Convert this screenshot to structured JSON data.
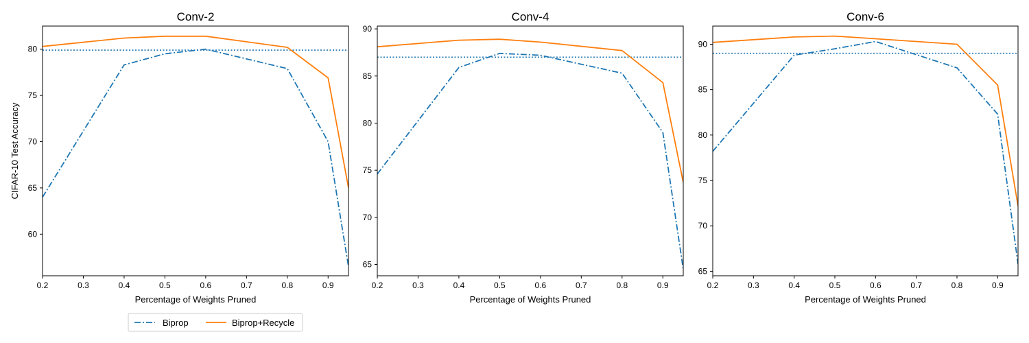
{
  "chart_data": [
    {
      "type": "line",
      "title": "Conv-2",
      "xlabel": "Percentage of Weights Pruned",
      "ylabel": "CIFAR-10 Test Accuracy",
      "xlim": [
        0.2,
        0.95
      ],
      "ylim": [
        55.5,
        82.5
      ],
      "xticks": [
        0.2,
        0.3,
        0.4,
        0.5,
        0.6,
        0.7,
        0.8,
        0.9
      ],
      "yticks": [
        60,
        65,
        70,
        75,
        80
      ],
      "baseline": 79.9,
      "x": [
        0.2,
        0.4,
        0.5,
        0.6,
        0.8,
        0.9,
        0.95
      ],
      "series": [
        {
          "name": "Biprop",
          "values": [
            64.0,
            78.3,
            79.5,
            80.0,
            77.9,
            70.0,
            56.5
          ]
        },
        {
          "name": "Biprop+Recycle",
          "values": [
            80.3,
            81.2,
            81.4,
            81.4,
            80.2,
            76.9,
            65.0
          ]
        }
      ]
    },
    {
      "type": "line",
      "title": "Conv-4",
      "xlabel": "Percentage of Weights Pruned",
      "ylabel": "",
      "xlim": [
        0.2,
        0.95
      ],
      "ylim": [
        63.8,
        90.3
      ],
      "xticks": [
        0.2,
        0.3,
        0.4,
        0.5,
        0.6,
        0.7,
        0.8,
        0.9
      ],
      "yticks": [
        65,
        70,
        75,
        80,
        85,
        90
      ],
      "baseline": 87.0,
      "x": [
        0.2,
        0.4,
        0.5,
        0.6,
        0.8,
        0.9,
        0.95
      ],
      "series": [
        {
          "name": "Biprop",
          "values": [
            74.6,
            85.9,
            87.4,
            87.2,
            85.3,
            79.0,
            64.5
          ]
        },
        {
          "name": "Biprop+Recycle",
          "values": [
            88.1,
            88.8,
            88.9,
            88.6,
            87.7,
            84.3,
            73.7
          ]
        }
      ]
    },
    {
      "type": "line",
      "title": "Conv-6",
      "xlabel": "Percentage of Weights Pruned",
      "ylabel": "",
      "xlim": [
        0.2,
        0.95
      ],
      "ylim": [
        64.5,
        92.0
      ],
      "xticks": [
        0.2,
        0.3,
        0.4,
        0.5,
        0.6,
        0.7,
        0.8,
        0.9
      ],
      "yticks": [
        65,
        70,
        75,
        80,
        85,
        90
      ],
      "baseline": 89.0,
      "x": [
        0.2,
        0.4,
        0.5,
        0.6,
        0.8,
        0.9,
        0.95
      ],
      "series": [
        {
          "name": "Biprop",
          "values": [
            78.2,
            88.8,
            89.5,
            90.3,
            87.4,
            82.3,
            65.8
          ]
        },
        {
          "name": "Biprop+Recycle",
          "values": [
            90.2,
            90.8,
            90.9,
            90.6,
            90.0,
            85.5,
            72.2
          ]
        }
      ]
    }
  ],
  "legend": {
    "placement": "bottom-left",
    "entries": [
      {
        "label": "Biprop",
        "color": "#1f77b4",
        "style": "dashdot"
      },
      {
        "label": "Biprop+Recycle",
        "color": "#ff7f0e",
        "style": "solid"
      }
    ]
  },
  "colors": {
    "biprop": "#1f77b4",
    "recycle": "#ff7f0e",
    "baseline": "#1f77b4"
  }
}
